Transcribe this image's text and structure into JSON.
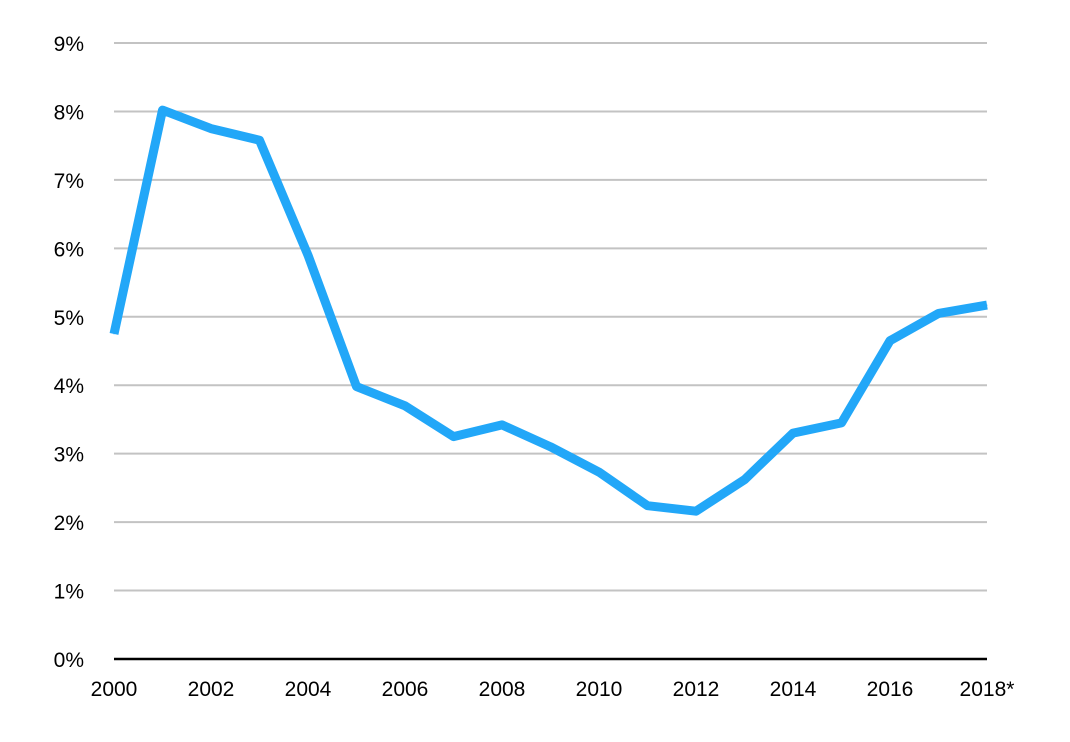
{
  "chart_data": {
    "type": "line",
    "title": "",
    "xlabel": "",
    "ylabel": "",
    "x": [
      2000,
      2001,
      2002,
      2003,
      2004,
      2005,
      2006,
      2007,
      2008,
      2009,
      2010,
      2011,
      2012,
      2013,
      2014,
      2015,
      2016,
      2017,
      2018
    ],
    "x_tick_labels": [
      "2000",
      "2002",
      "2004",
      "2006",
      "2008",
      "2010",
      "2012",
      "2014",
      "2016",
      "2018*"
    ],
    "y_tick_labels": [
      "0%",
      "1%",
      "2%",
      "3%",
      "4%",
      "5%",
      "6%",
      "7%",
      "8%",
      "9%"
    ],
    "xlim": [
      2000,
      2018
    ],
    "ylim": [
      0,
      9
    ],
    "y_unit": "%",
    "grid": true,
    "legend": "none",
    "series": [
      {
        "color": "#22a7f8",
        "values": [
          4.75,
          8.02,
          7.75,
          7.58,
          5.9,
          3.98,
          3.7,
          3.25,
          3.42,
          3.1,
          2.73,
          2.24,
          2.16,
          2.62,
          3.3,
          3.45,
          4.65,
          5.05,
          5.17
        ]
      }
    ]
  }
}
